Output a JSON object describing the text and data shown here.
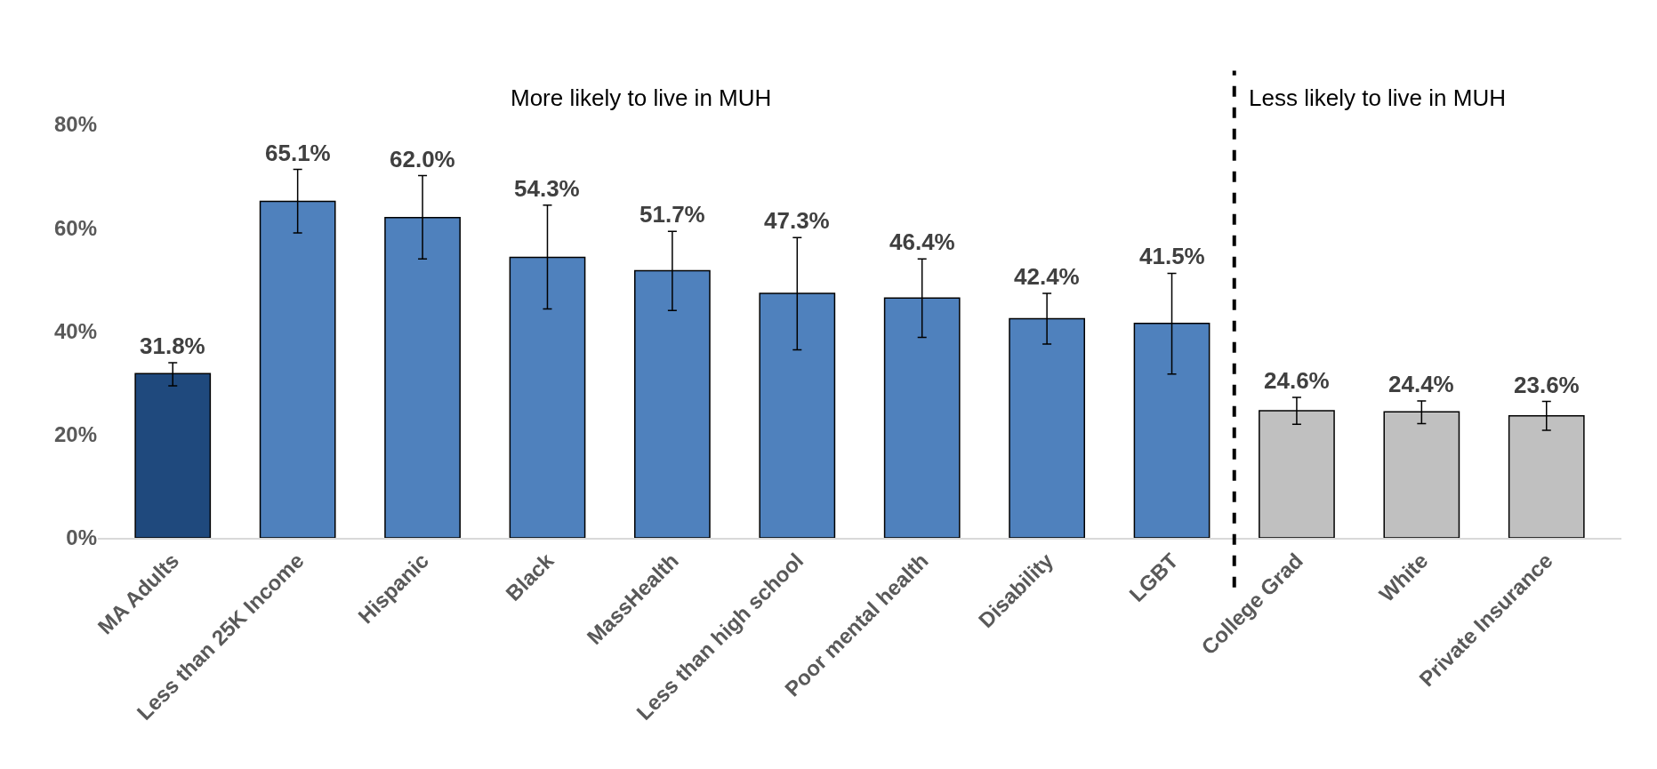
{
  "chart_data": {
    "type": "bar",
    "categories": [
      "MA Adults",
      "Less than 25K Income",
      "Hispanic",
      "Black",
      "MassHealth",
      "Less than high school",
      "Poor mental health",
      "Disability",
      "LGBT",
      "College Grad",
      "White",
      "Private Insurance"
    ],
    "values": [
      31.8,
      65.1,
      62.0,
      54.3,
      51.7,
      47.3,
      46.4,
      42.4,
      41.5,
      24.6,
      24.4,
      23.6
    ],
    "value_labels": [
      "31.8%",
      "65.1%",
      "62.0%",
      "54.3%",
      "51.7%",
      "47.3%",
      "46.4%",
      "42.4%",
      "41.5%",
      "24.6%",
      "24.4%",
      "23.6%"
    ],
    "colors": [
      "#1f497d",
      "#4f81bd",
      "#4f81bd",
      "#4f81bd",
      "#4f81bd",
      "#4f81bd",
      "#4f81bd",
      "#4f81bd",
      "#4f81bd",
      "#c0c0c0",
      "#c0c0c0",
      "#c0c0c0"
    ],
    "errors": [
      [
        29.4,
        33.9
      ],
      [
        59.0,
        71.3
      ],
      [
        54.0,
        70.1
      ],
      [
        44.3,
        64.4
      ],
      [
        44.0,
        59.3
      ],
      [
        36.4,
        58.1
      ],
      [
        38.8,
        54.0
      ],
      [
        37.5,
        47.3
      ],
      [
        31.7,
        51.2
      ],
      [
        22.0,
        27.2
      ],
      [
        22.1,
        26.5
      ],
      [
        20.8,
        26.4
      ]
    ],
    "ylim": [
      0,
      80
    ],
    "yticks": [
      {
        "value": 0,
        "label": "0%"
      },
      {
        "value": 20,
        "label": "20%"
      },
      {
        "value": 40,
        "label": "40%"
      },
      {
        "value": 60,
        "label": "60%"
      },
      {
        "value": 80,
        "label": "80%"
      }
    ],
    "annotations": [
      "More likely to live in MUH",
      "Less likely to live in MUH"
    ]
  }
}
